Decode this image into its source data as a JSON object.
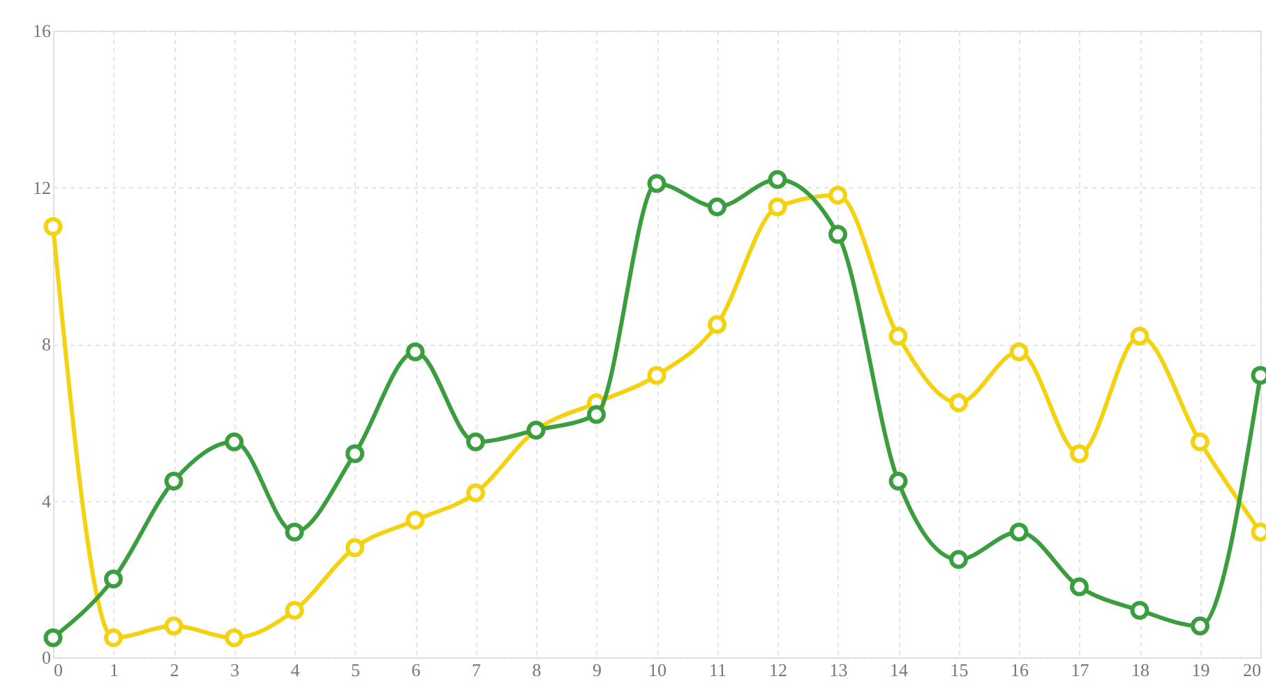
{
  "chart_data": {
    "type": "line",
    "x": [
      0,
      1,
      2,
      3,
      4,
      5,
      6,
      7,
      8,
      9,
      10,
      11,
      12,
      13,
      14,
      15,
      16,
      17,
      18,
      19,
      20
    ],
    "series": [
      {
        "color": "#f5d20f",
        "values": [
          11,
          0.5,
          0.8,
          0.5,
          1.2,
          2.8,
          3.5,
          4.2,
          5.8,
          6.5,
          7.2,
          8.5,
          11.5,
          11.8,
          8.2,
          6.5,
          7.8,
          5.2,
          8.2,
          5.5,
          3.2
        ]
      },
      {
        "color": "#3a9e3f",
        "values": [
          0.5,
          2.0,
          4.5,
          5.5,
          3.2,
          5.2,
          7.8,
          5.5,
          5.8,
          6.2,
          12.1,
          11.5,
          12.2,
          10.8,
          4.5,
          2.5,
          3.2,
          1.8,
          1.2,
          0.8,
          7.2
        ]
      }
    ],
    "xlim": [
      0,
      20
    ],
    "xticks": [
      0,
      1,
      2,
      3,
      4,
      5,
      6,
      7,
      8,
      9,
      10,
      11,
      12,
      13,
      14,
      15,
      16,
      17,
      18,
      19,
      20
    ],
    "ylim": [
      0,
      16
    ],
    "yticks": [
      0,
      4,
      8,
      12,
      16
    ],
    "grid": true,
    "marker": "circle",
    "line_style": "solid"
  }
}
